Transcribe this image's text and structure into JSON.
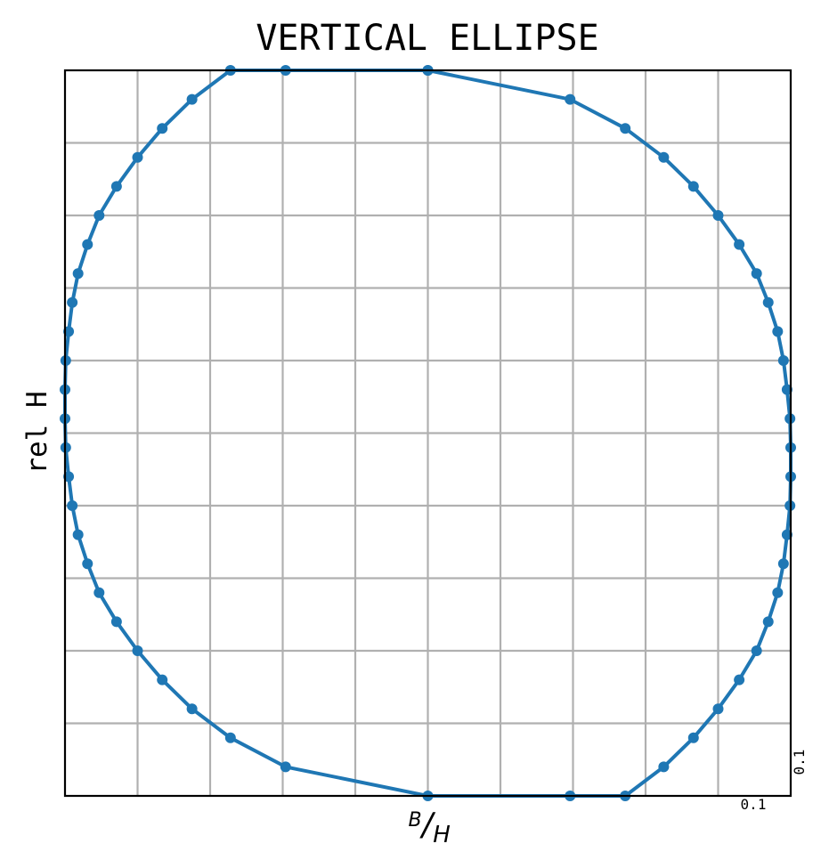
{
  "chart_data": {
    "type": "line",
    "title": "VERTICAL ELLIPSE",
    "xlabel": {
      "numerator": "B",
      "denominator": "H"
    },
    "ylabel": "rel H",
    "x_scale_label": "0.1",
    "y_scale_label": "0.1",
    "xlim": [
      -0.5,
      0.5
    ],
    "ylim": [
      -0.5,
      0.5
    ],
    "grid": true,
    "grid_step": 0.1,
    "series_color": "#1f77b4",
    "marker": "circle",
    "points": {
      "x": [
        0,
        0.196,
        0.272,
        0.325,
        0.366,
        0.4,
        0.429,
        0.453,
        0.469,
        0.482,
        0.49,
        0.495,
        0.499,
        0.5,
        0.5,
        0.499,
        0.495,
        0.49,
        0.482,
        0.469,
        0.453,
        0.429,
        0.4,
        0.366,
        0.325,
        0.272,
        0.196,
        0,
        -0.196,
        -0.272,
        -0.325,
        -0.366,
        -0.4,
        -0.429,
        -0.453,
        -0.469,
        -0.482,
        -0.49,
        -0.495,
        -0.499,
        -0.5,
        -0.5,
        -0.499,
        -0.495,
        -0.49,
        -0.482,
        -0.469,
        -0.453,
        -0.429,
        -0.4,
        -0.366,
        -0.325,
        -0.272,
        -0.196,
        0
      ],
      "y": [
        0.5,
        0.46,
        0.42,
        0.38,
        0.34,
        0.3,
        0.26,
        0.22,
        0.18,
        0.14,
        0.1,
        0.06,
        0.02,
        -0.02,
        -0.06,
        -0.1,
        -0.14,
        -0.18,
        -0.22,
        -0.26,
        -0.3,
        -0.34,
        -0.38,
        -0.42,
        -0.46,
        -0.5,
        -0.5,
        -0.5,
        -0.46,
        -0.42,
        -0.38,
        -0.34,
        -0.3,
        -0.26,
        -0.22,
        -0.18,
        -0.14,
        -0.1,
        -0.06,
        -0.02,
        0.02,
        0.06,
        0.1,
        0.14,
        0.18,
        0.22,
        0.26,
        0.3,
        0.34,
        0.38,
        0.42,
        0.46,
        0.5,
        0.5,
        0.5
      ]
    }
  }
}
